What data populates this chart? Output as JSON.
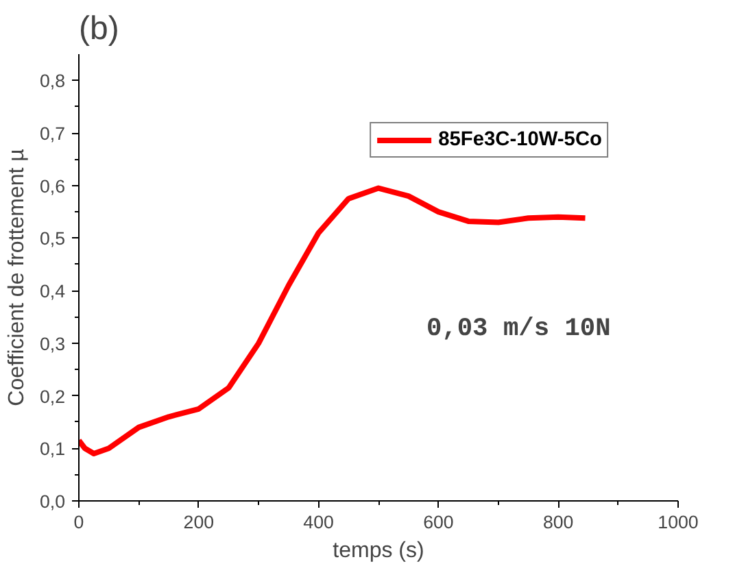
{
  "chart_data": {
    "type": "line",
    "title": "(b)",
    "xlabel": "temps (s)",
    "ylabel": "Coefficient de frottement µ",
    "x": [
      0,
      10,
      25,
      50,
      100,
      150,
      200,
      250,
      300,
      350,
      400,
      450,
      500,
      550,
      600,
      650,
      700,
      750,
      800,
      845
    ],
    "series": [
      {
        "name": "85Fe3C-10W-5Co",
        "color": "#ff0000",
        "values": [
          0.115,
          0.1,
          0.09,
          0.1,
          0.14,
          0.16,
          0.175,
          0.215,
          0.3,
          0.41,
          0.51,
          0.575,
          0.595,
          0.58,
          0.55,
          0.532,
          0.53,
          0.538,
          0.54,
          0.538
        ]
      }
    ],
    "xlim": [
      0,
      1000
    ],
    "ylim": [
      0,
      0.85
    ],
    "xticks": [
      0,
      200,
      400,
      600,
      800,
      1000
    ],
    "yticks": [
      {
        "value": 0,
        "label": "0,0"
      },
      {
        "value": 0.1,
        "label": "0,1"
      },
      {
        "value": 0.2,
        "label": "0,2"
      },
      {
        "value": 0.3,
        "label": "0,3"
      },
      {
        "value": 0.4,
        "label": "0,4"
      },
      {
        "value": 0.5,
        "label": "0,5"
      },
      {
        "value": 0.6,
        "label": "0,6"
      },
      {
        "value": 0.7,
        "label": "0,7"
      },
      {
        "value": 0.8,
        "label": "0,8"
      }
    ],
    "annotations": [
      "0,03 m/s 10N"
    ],
    "legend": "top right",
    "grid": false,
    "marker": "none",
    "line_style": "solid"
  }
}
